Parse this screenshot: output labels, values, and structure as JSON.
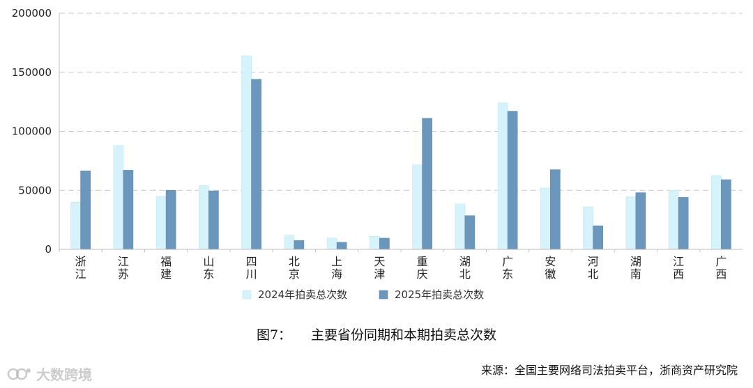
{
  "chart_data": {
    "type": "bar",
    "categories": [
      "浙江",
      "江苏",
      "福建",
      "山东",
      "四川",
      "北京",
      "上海",
      "天津",
      "重庆",
      "湖北",
      "广东",
      "安徽",
      "河北",
      "湖南",
      "江西",
      "广西"
    ],
    "series": [
      {
        "name": "2024年拍卖总次数",
        "color": "#d6f3fb",
        "values": [
          40000,
          88000,
          45000,
          54000,
          164000,
          12000,
          9500,
          11000,
          71500,
          38500,
          124000,
          52000,
          36000,
          44500,
          50000,
          62500
        ]
      },
      {
        "name": "2025年拍卖总次数",
        "color": "#6c97bd",
        "values": [
          66500,
          67000,
          50000,
          49500,
          144000,
          7500,
          6000,
          9500,
          111000,
          28500,
          117000,
          67500,
          20000,
          48000,
          44000,
          59000
        ]
      }
    ],
    "yticks": [
      "200000",
      "150000",
      "100000",
      "50000",
      "0"
    ],
    "ylim": [
      0,
      200000
    ],
    "grid": true,
    "legend_position": "bottom"
  },
  "caption": {
    "figure_no": "图7：",
    "title": "主要省份同期和本期拍卖总次数"
  },
  "source": "来源：全国主要网络司法拍卖平台，浙商资产研究院",
  "watermark": "大数跨境"
}
